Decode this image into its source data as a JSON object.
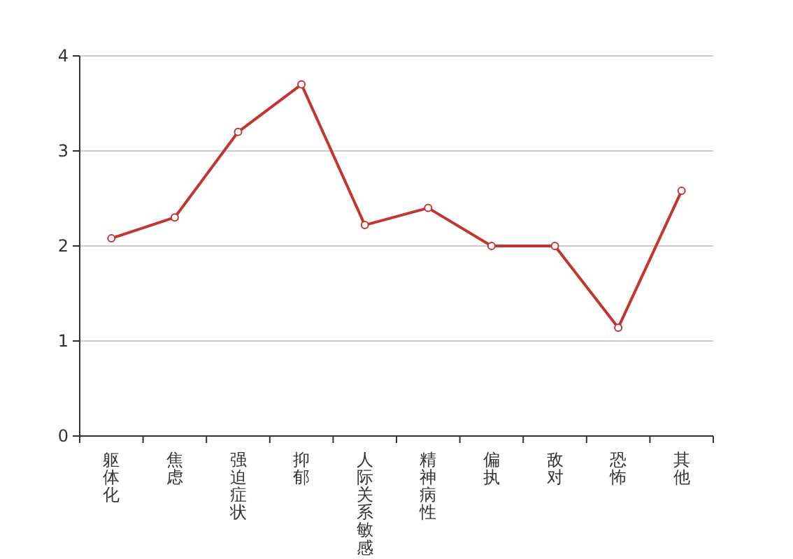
{
  "chart_data": {
    "type": "line",
    "categories": [
      "躯体化",
      "焦虑",
      "强迫症状",
      "抑郁",
      "人际关系敏感",
      "精神病性",
      "偏执",
      "敌对",
      "恐怖",
      "其他"
    ],
    "series": [
      {
        "color": "#c23531",
        "values": [
          2.08,
          2.3,
          3.2,
          3.7,
          2.22,
          2.4,
          2.0,
          2.0,
          1.14,
          2.58
        ]
      }
    ],
    "ylim": [
      0,
      4
    ],
    "yticks": [
      0,
      1,
      2,
      3,
      4
    ],
    "grid": "y",
    "marker": "circle",
    "line_style": "solid"
  }
}
